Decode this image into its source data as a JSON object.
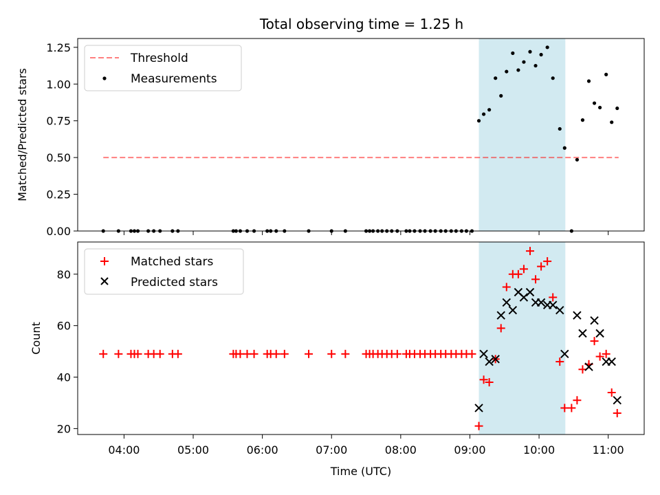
{
  "chart_data": {
    "title": "Total observing time = 1.25 h",
    "xlabel": "Time (UTC)",
    "x_ticks": [
      "04:00",
      "05:00",
      "06:00",
      "07:00",
      "08:00",
      "09:00",
      "10:00",
      "11:00"
    ],
    "x_tick_hours": [
      4,
      5,
      6,
      7,
      8,
      9,
      10,
      11
    ],
    "xlim_hours": [
      3.33,
      11.52
    ],
    "shaded_span_hours": [
      9.13,
      10.38
    ],
    "shade_color": "#add8e6",
    "panels": [
      {
        "type": "scatter",
        "ylabel": "Matched/Predicted stars",
        "ylim": [
          0,
          1.31
        ],
        "y_ticks": [
          0.0,
          0.25,
          0.5,
          0.75,
          1.0,
          1.25
        ],
        "y_tick_labels": [
          "0.00",
          "0.25",
          "0.50",
          "0.75",
          "1.00",
          "1.25"
        ],
        "legend_position": "top-left",
        "threshold": {
          "name": "Threshold",
          "value": 0.5,
          "x_range_hours": [
            3.7,
            11.15
          ],
          "color": "#ff0000",
          "opacity": 0.5
        },
        "series": [
          {
            "name": "Measurements",
            "marker": "dot",
            "color": "#000000",
            "points": [
              [
                3.7,
                0
              ],
              [
                3.92,
                0
              ],
              [
                4.1,
                0
              ],
              [
                4.15,
                0
              ],
              [
                4.2,
                0
              ],
              [
                4.35,
                0
              ],
              [
                4.43,
                0
              ],
              [
                4.52,
                0
              ],
              [
                4.7,
                0
              ],
              [
                4.78,
                0
              ],
              [
                5.58,
                0
              ],
              [
                5.62,
                0
              ],
              [
                5.68,
                0
              ],
              [
                5.78,
                0
              ],
              [
                5.88,
                0
              ],
              [
                6.07,
                0
              ],
              [
                6.12,
                0
              ],
              [
                6.2,
                0
              ],
              [
                6.32,
                0
              ],
              [
                6.67,
                0
              ],
              [
                7.0,
                0
              ],
              [
                7.2,
                0
              ],
              [
                7.5,
                0
              ],
              [
                7.55,
                0
              ],
              [
                7.6,
                0
              ],
              [
                7.67,
                0
              ],
              [
                7.73,
                0
              ],
              [
                7.8,
                0
              ],
              [
                7.87,
                0
              ],
              [
                7.95,
                0
              ],
              [
                8.08,
                0
              ],
              [
                8.13,
                0
              ],
              [
                8.2,
                0
              ],
              [
                8.28,
                0
              ],
              [
                8.35,
                0
              ],
              [
                8.43,
                0
              ],
              [
                8.5,
                0
              ],
              [
                8.58,
                0
              ],
              [
                8.65,
                0
              ],
              [
                8.73,
                0
              ],
              [
                8.8,
                0
              ],
              [
                8.88,
                0
              ],
              [
                8.95,
                0
              ],
              [
                9.03,
                0
              ],
              [
                9.13,
                0.75
              ],
              [
                9.2,
                0.795
              ],
              [
                9.28,
                0.825
              ],
              [
                9.37,
                1.04
              ],
              [
                9.45,
                0.92
              ],
              [
                9.53,
                1.085
              ],
              [
                9.62,
                1.21
              ],
              [
                9.7,
                1.095
              ],
              [
                9.78,
                1.15
              ],
              [
                9.87,
                1.22
              ],
              [
                9.95,
                1.125
              ],
              [
                10.03,
                1.2
              ],
              [
                10.12,
                1.25
              ],
              [
                10.2,
                1.04
              ],
              [
                10.3,
                0.695
              ],
              [
                10.37,
                0.565
              ],
              [
                10.47,
                0
              ],
              [
                10.55,
                0.485
              ],
              [
                10.63,
                0.755
              ],
              [
                10.72,
                1.02
              ],
              [
                10.8,
                0.87
              ],
              [
                10.88,
                0.84
              ],
              [
                10.97,
                1.065
              ],
              [
                11.05,
                0.74
              ],
              [
                11.13,
                0.835
              ]
            ]
          }
        ]
      },
      {
        "type": "scatter",
        "ylabel": "Count",
        "ylim": [
          17.7,
          92.5
        ],
        "y_ticks": [
          20,
          40,
          60,
          80
        ],
        "y_tick_labels": [
          "20",
          "40",
          "60",
          "80"
        ],
        "legend_position": "top-left",
        "series": [
          {
            "name": "Matched stars",
            "marker": "plus",
            "color": "#ff0000",
            "points": [
              [
                3.7,
                49
              ],
              [
                3.92,
                49
              ],
              [
                4.1,
                49
              ],
              [
                4.15,
                49
              ],
              [
                4.2,
                49
              ],
              [
                4.35,
                49
              ],
              [
                4.43,
                49
              ],
              [
                4.52,
                49
              ],
              [
                4.7,
                49
              ],
              [
                4.78,
                49
              ],
              [
                5.58,
                49
              ],
              [
                5.62,
                49
              ],
              [
                5.68,
                49
              ],
              [
                5.78,
                49
              ],
              [
                5.88,
                49
              ],
              [
                6.07,
                49
              ],
              [
                6.12,
                49
              ],
              [
                6.2,
                49
              ],
              [
                6.32,
                49
              ],
              [
                6.67,
                49
              ],
              [
                7.0,
                49
              ],
              [
                7.2,
                49
              ],
              [
                7.5,
                49
              ],
              [
                7.55,
                49
              ],
              [
                7.6,
                49
              ],
              [
                7.67,
                49
              ],
              [
                7.73,
                49
              ],
              [
                7.8,
                49
              ],
              [
                7.87,
                49
              ],
              [
                7.95,
                49
              ],
              [
                8.08,
                49
              ],
              [
                8.13,
                49
              ],
              [
                8.2,
                49
              ],
              [
                8.28,
                49
              ],
              [
                8.35,
                49
              ],
              [
                8.43,
                49
              ],
              [
                8.5,
                49
              ],
              [
                8.58,
                49
              ],
              [
                8.65,
                49
              ],
              [
                8.73,
                49
              ],
              [
                8.8,
                49
              ],
              [
                8.88,
                49
              ],
              [
                8.95,
                49
              ],
              [
                9.03,
                49
              ],
              [
                9.13,
                21
              ],
              [
                9.2,
                39
              ],
              [
                9.28,
                38
              ],
              [
                9.37,
                47
              ],
              [
                9.45,
                59
              ],
              [
                9.53,
                75
              ],
              [
                9.62,
                80
              ],
              [
                9.7,
                80
              ],
              [
                9.78,
                82
              ],
              [
                9.87,
                89
              ],
              [
                9.95,
                78
              ],
              [
                10.03,
                83
              ],
              [
                10.12,
                85
              ],
              [
                10.2,
                71
              ],
              [
                10.3,
                46
              ],
              [
                10.37,
                28
              ],
              [
                10.47,
                28
              ],
              [
                10.55,
                31
              ],
              [
                10.63,
                43
              ],
              [
                10.72,
                45
              ],
              [
                10.8,
                54
              ],
              [
                10.88,
                48
              ],
              [
                10.97,
                49
              ],
              [
                11.05,
                34
              ],
              [
                11.13,
                26
              ]
            ]
          },
          {
            "name": "Predicted stars",
            "marker": "x",
            "color": "#000000",
            "points": [
              [
                9.13,
                28
              ],
              [
                9.2,
                49
              ],
              [
                9.28,
                46
              ],
              [
                9.37,
                47
              ],
              [
                9.45,
                64
              ],
              [
                9.53,
                69
              ],
              [
                9.62,
                66
              ],
              [
                9.7,
                73
              ],
              [
                9.78,
                71
              ],
              [
                9.87,
                73
              ],
              [
                9.95,
                69
              ],
              [
                10.03,
                69
              ],
              [
                10.12,
                68
              ],
              [
                10.2,
                68
              ],
              [
                10.3,
                66
              ],
              [
                10.37,
                49
              ],
              [
                10.55,
                64
              ],
              [
                10.63,
                57
              ],
              [
                10.72,
                44
              ],
              [
                10.8,
                62
              ],
              [
                10.88,
                57
              ],
              [
                10.97,
                46
              ],
              [
                11.05,
                46
              ],
              [
                11.13,
                31
              ]
            ]
          }
        ]
      }
    ]
  }
}
